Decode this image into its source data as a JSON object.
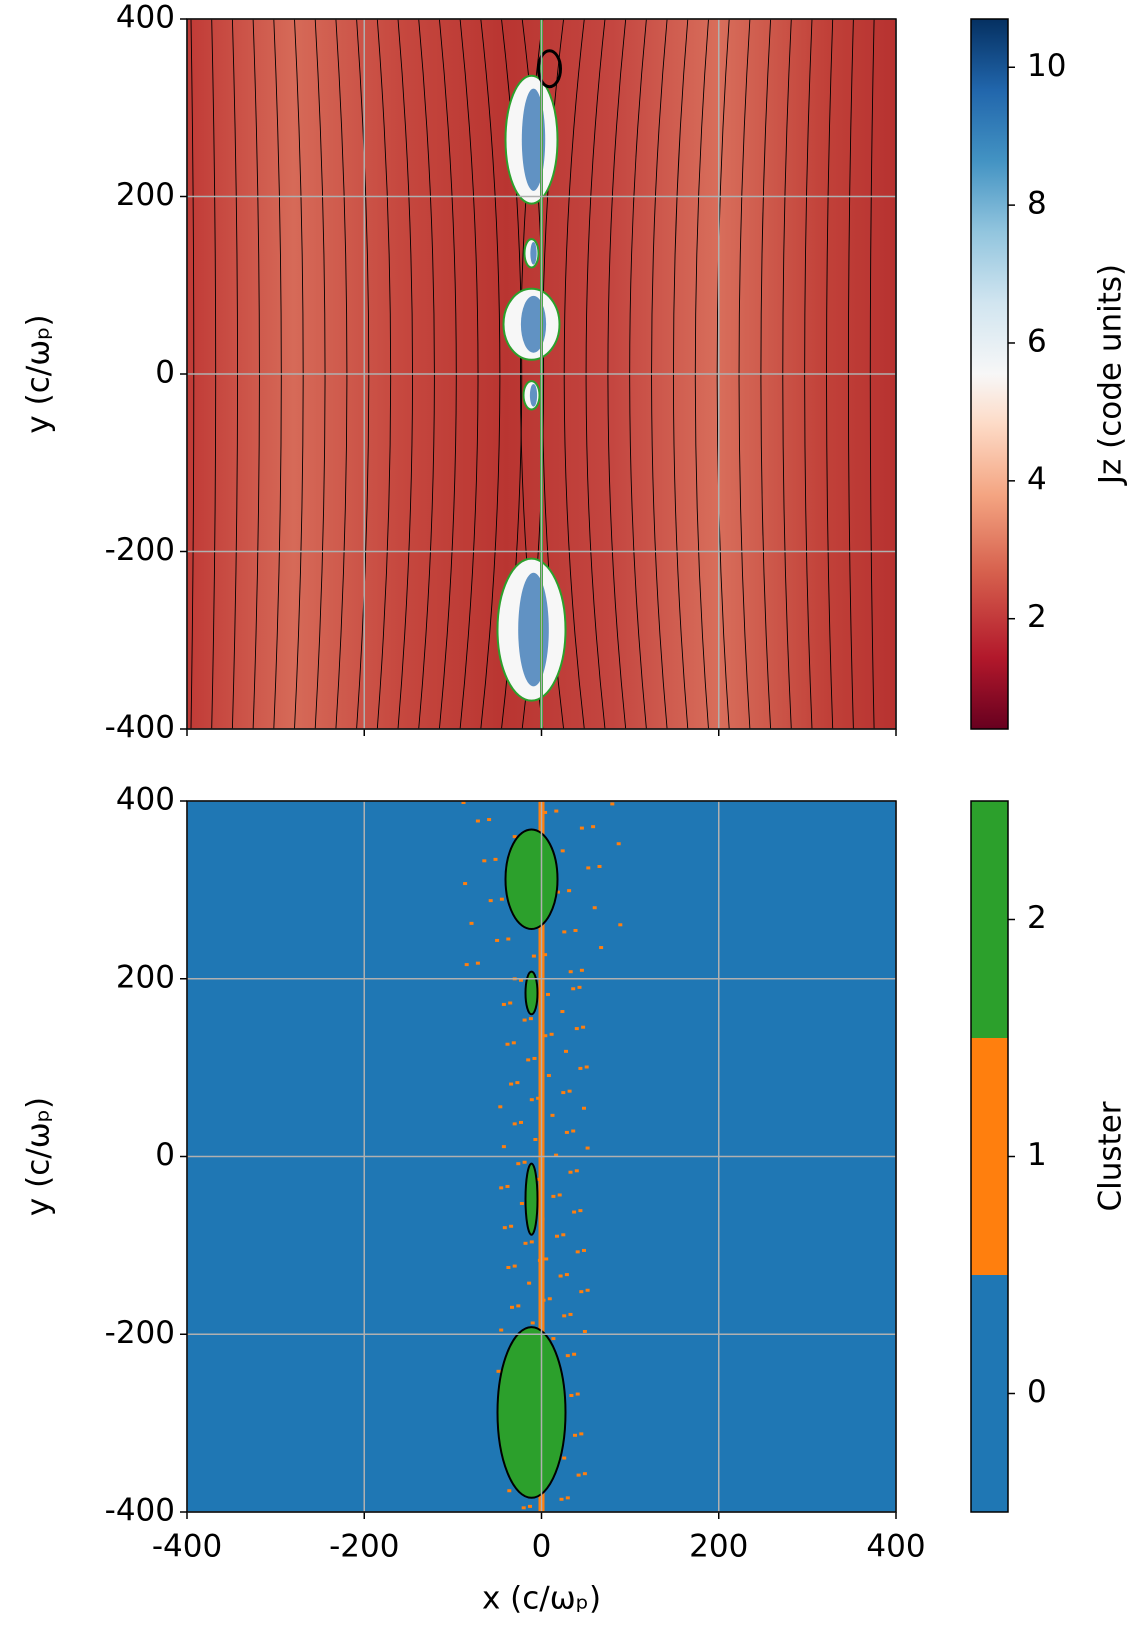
{
  "chart_data": [
    {
      "type": "heatmap",
      "xlim": [
        -400,
        400
      ],
      "ylim": [
        -400,
        400
      ],
      "xticks": [
        -400,
        -200,
        0,
        200,
        400
      ],
      "yticks": [
        -400,
        -200,
        0,
        200,
        400
      ],
      "ylabel": "y (c/ωₚ)",
      "grid": true,
      "colorbar": {
        "label": "Jz (code units)",
        "clim": [
          0.4,
          10.7
        ],
        "ticks": [
          2,
          4,
          6,
          8,
          10
        ],
        "colormap": "RdBu"
      }
    },
    {
      "type": "heatmap",
      "xlim": [
        -400,
        400
      ],
      "ylim": [
        -400,
        400
      ],
      "xticks": [
        -400,
        -200,
        0,
        200,
        400
      ],
      "yticks": [
        -400,
        -200,
        0,
        200,
        400
      ],
      "xlabel": "x (c/ωₚ)",
      "ylabel": "y (c/ωₚ)",
      "grid": true,
      "colorbar": {
        "label": "Cluster",
        "clim": [
          -0.5,
          2.5
        ],
        "ticks": [
          0,
          1,
          2
        ],
        "colors": [
          "#1f77b4",
          "#ff7f0e",
          "#2ca02c"
        ]
      }
    }
  ]
}
